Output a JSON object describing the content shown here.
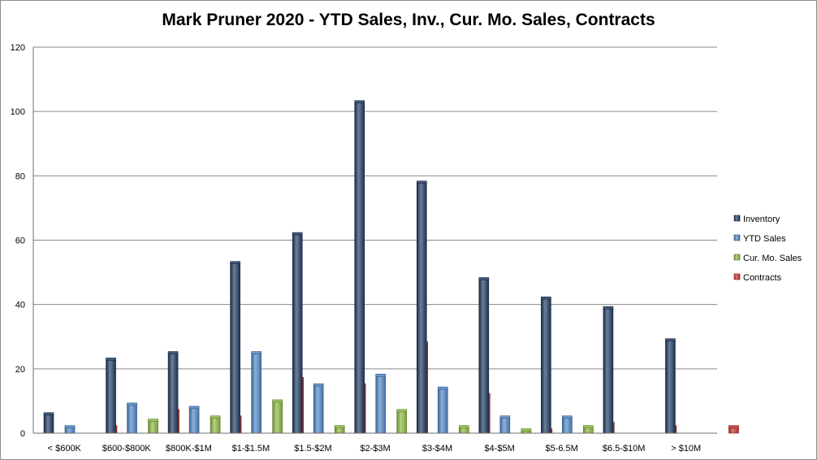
{
  "chart_data": {
    "type": "bar",
    "title": "Mark Pruner 2020 - YTD Sales, Inv., Cur. Mo. Sales, Contracts",
    "xlabel": "",
    "ylabel": "",
    "ylim": [
      0,
      120
    ],
    "yticks": [
      0,
      20,
      40,
      60,
      80,
      100,
      120
    ],
    "grid": true,
    "legend_position": "right",
    "categories": [
      "< $600K",
      "$600-$800K",
      "$800K-$1M",
      "$1-$1.5M",
      "$1.5-$2M",
      "$2-$3M",
      "$3-$4M",
      "$4-$5M",
      "$5-6.5M",
      "$6.5-$10M",
      "> $10M"
    ],
    "series": [
      {
        "name": "Inventory",
        "color": "#1f3a60",
        "values": [
          6,
          23,
          25,
          53,
          62,
          103,
          78,
          48,
          42,
          39,
          29
        ]
      },
      {
        "name": "YTD Sales",
        "color": "#4f86c6",
        "values": [
          2,
          9,
          8,
          25,
          15,
          18,
          14,
          5,
          5,
          0,
          0
        ]
      },
      {
        "name": "Cur. Mo. Sales",
        "color": "#8cb840",
        "values": [
          0,
          4,
          5,
          10,
          2,
          7,
          2,
          1,
          2,
          0,
          0
        ]
      },
      {
        "name": "Contracts",
        "color": "#c8302c",
        "values": [
          2,
          7,
          5,
          17,
          15,
          28,
          12,
          1,
          3,
          2,
          2
        ]
      }
    ]
  }
}
